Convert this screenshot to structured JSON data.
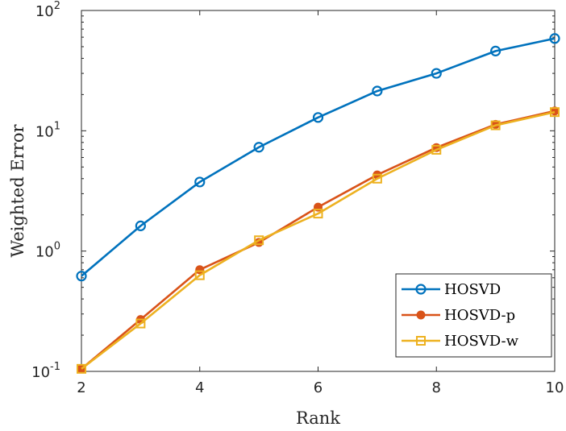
{
  "chart_data": {
    "type": "line",
    "xlabel": "Rank",
    "ylabel": "Weighted Error",
    "x": [
      2,
      3,
      4,
      5,
      6,
      7,
      8,
      9,
      10
    ],
    "xlim": [
      2,
      10
    ],
    "ylim": [
      0.1,
      100
    ],
    "yscale": "log",
    "x_ticks": [
      "2",
      "4",
      "6",
      "8",
      "10"
    ],
    "y_ticks": [
      {
        "base": "10",
        "exp": "-1"
      },
      {
        "base": "10",
        "exp": "0"
      },
      {
        "base": "10",
        "exp": "1"
      },
      {
        "base": "10",
        "exp": "2"
      }
    ],
    "grid": false,
    "legend_position": "bottom-right",
    "series": [
      {
        "name": "HOSVD",
        "color": "#0072BD",
        "marker": "circle-open",
        "values": [
          0.62,
          1.62,
          3.75,
          7.3,
          12.9,
          21.4,
          30.0,
          46.0,
          58.5
        ]
      },
      {
        "name": "HOSVD-p",
        "color": "#D95319",
        "marker": "circle-filled",
        "values": [
          0.105,
          0.27,
          0.7,
          1.18,
          2.32,
          4.3,
          7.25,
          11.3,
          14.6
        ]
      },
      {
        "name": "HOSVD-w",
        "color": "#EDB120",
        "marker": "square-open",
        "values": [
          0.105,
          0.25,
          0.63,
          1.23,
          2.05,
          4.0,
          6.95,
          11.1,
          14.3
        ]
      }
    ]
  }
}
